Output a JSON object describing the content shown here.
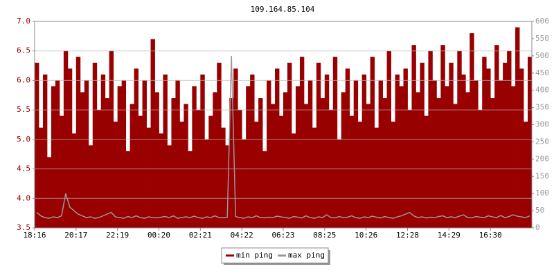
{
  "chart_data": {
    "type": "bar-line",
    "title": "109.164.85.104",
    "categories": [
      "18:16",
      null,
      null,
      null,
      null,
      null,
      null,
      null,
      null,
      null,
      "20:17",
      null,
      null,
      null,
      null,
      null,
      null,
      null,
      null,
      null,
      "22:19",
      null,
      null,
      null,
      null,
      null,
      null,
      null,
      null,
      null,
      "00:20",
      null,
      null,
      null,
      null,
      null,
      null,
      null,
      null,
      null,
      "02:21",
      null,
      null,
      null,
      null,
      null,
      null,
      null,
      null,
      null,
      "04:22",
      null,
      null,
      null,
      null,
      null,
      null,
      null,
      null,
      null,
      "06:23",
      null,
      null,
      null,
      null,
      null,
      null,
      null,
      null,
      null,
      "08:25",
      null,
      null,
      null,
      null,
      null,
      null,
      null,
      null,
      null,
      "10:26",
      null,
      null,
      null,
      null,
      null,
      null,
      null,
      null,
      null,
      "12:28",
      null,
      null,
      null,
      null,
      null,
      null,
      null,
      null,
      null,
      "14:29",
      null,
      null,
      null,
      null,
      null,
      null,
      null,
      null,
      null,
      "16:30",
      null,
      null,
      null,
      null,
      null,
      null,
      null,
      null,
      null
    ],
    "series": [
      {
        "name": "min ping",
        "color": "#990000",
        "values": [
          6.3,
          5.2,
          6.1,
          4.7,
          5.9,
          6.0,
          5.4,
          6.5,
          6.2,
          5.1,
          6.4,
          5.8,
          6.0,
          4.9,
          6.3,
          5.5,
          6.1,
          5.7,
          6.5,
          5.3,
          5.9,
          6.0,
          4.8,
          5.6,
          6.2,
          5.4,
          6.0,
          5.2,
          6.7,
          5.8,
          5.1,
          6.1,
          4.9,
          5.7,
          6.0,
          5.3,
          5.6,
          4.8,
          5.9,
          5.5,
          6.1,
          5.0,
          5.4,
          5.8,
          6.3,
          5.2,
          4.9,
          5.7,
          6.2,
          5.5,
          5.0,
          5.9,
          6.1,
          5.3,
          5.7,
          4.8,
          6.0,
          5.6,
          6.2,
          5.4,
          5.8,
          6.3,
          5.1,
          5.9,
          6.4,
          5.6,
          6.0,
          5.2,
          6.3,
          5.7,
          6.1,
          5.5,
          6.4,
          5.0,
          5.8,
          6.2,
          5.4,
          6.0,
          5.3,
          6.1,
          5.6,
          6.4,
          5.2,
          6.0,
          5.7,
          6.5,
          5.3,
          6.1,
          5.9,
          6.2,
          5.5,
          6.6,
          5.8,
          6.3,
          5.4,
          6.5,
          6.0,
          5.7,
          6.6,
          5.9,
          6.3,
          5.6,
          6.5,
          6.1,
          5.8,
          6.8,
          6.0,
          5.5,
          6.4,
          6.2,
          5.7,
          6.6,
          6.0,
          6.3,
          6.5,
          5.9,
          6.9,
          6.2,
          5.3,
          6.4
        ]
      },
      {
        "name": "max ping",
        "color": "#999999",
        "axis": "y2",
        "values": [
          45,
          35,
          30,
          28,
          32,
          30,
          35,
          100,
          60,
          50,
          40,
          35,
          30,
          32,
          28,
          30,
          35,
          40,
          45,
          32,
          30,
          28,
          33,
          30,
          35,
          30,
          28,
          32,
          30,
          29,
          31,
          33,
          30,
          35,
          28,
          30,
          32,
          30,
          34,
          30,
          28,
          32,
          30,
          35,
          30,
          29,
          31,
          500,
          33,
          30,
          28,
          32,
          30,
          35,
          30,
          29,
          31,
          30,
          34,
          32,
          30,
          28,
          33,
          31,
          29,
          35,
          30,
          28,
          32,
          30,
          38,
          30,
          29,
          33,
          30,
          31,
          35,
          30,
          28,
          32,
          30,
          34,
          31,
          29,
          33,
          30,
          28,
          32,
          35,
          40,
          45,
          35,
          30,
          32,
          29,
          31,
          30,
          33,
          35,
          30,
          32,
          30,
          34,
          38,
          30,
          29,
          33,
          31,
          30,
          35,
          32,
          30,
          36,
          30,
          33,
          38,
          34,
          32,
          30,
          35
        ]
      }
    ],
    "ylim": [
      3.5,
      7
    ],
    "yticks": [
      3.5,
      {
        "value": 4,
        "label": "4.0"
      },
      4.5,
      {
        "value": 5,
        "label": "5.0"
      },
      5.5,
      {
        "value": 6,
        "label": "6.0"
      },
      6.5,
      {
        "value": 7,
        "label": "7.0"
      }
    ],
    "y2lim": [
      0,
      600
    ],
    "y2ticks": [
      0,
      50,
      100,
      150,
      200,
      250,
      300,
      350,
      400,
      450,
      500,
      550,
      600
    ],
    "grid": true
  }
}
